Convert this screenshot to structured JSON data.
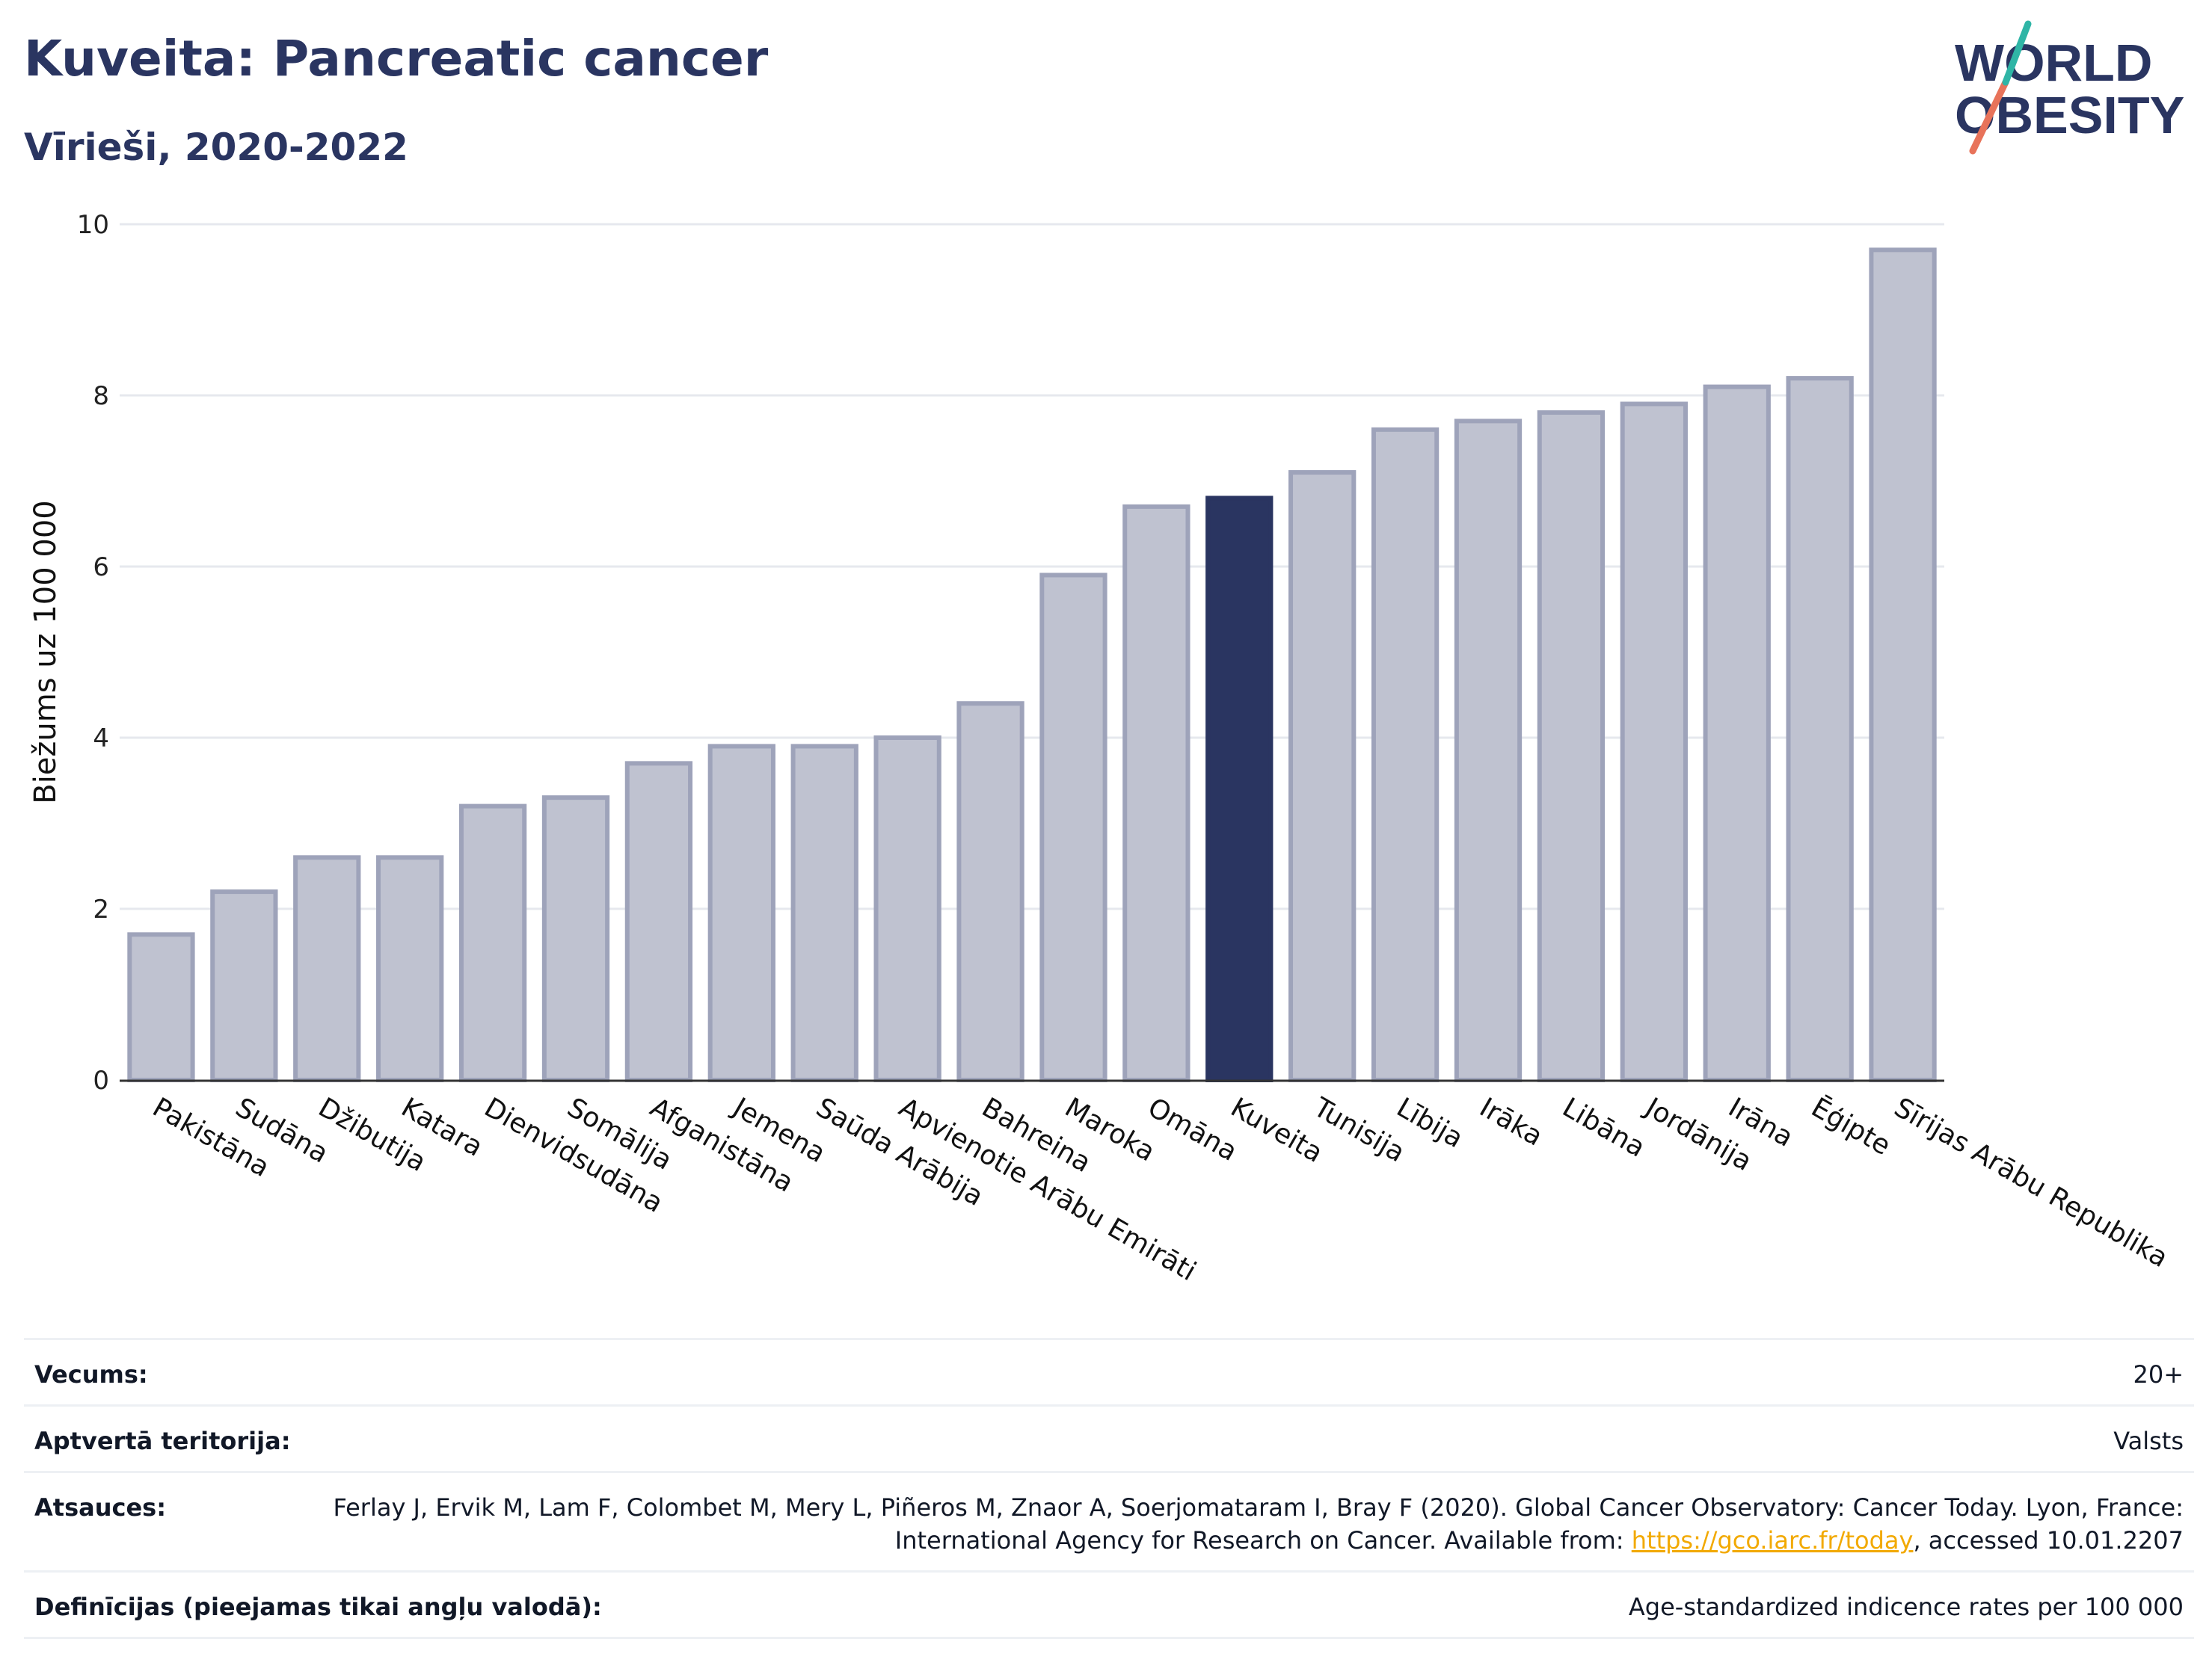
{
  "header": {
    "title": "Kuveita: Pancreatic cancer",
    "subtitle": "Vīrieši, 2020-2022"
  },
  "logo": {
    "line1": "WORLD",
    "line2": "OBESITY"
  },
  "chart_data": {
    "type": "bar",
    "title": "Kuveita: Pancreatic cancer",
    "subtitle": "Vīrieši, 2020-2022",
    "ylabel": "Biežums uz 100 000",
    "xlabel": "",
    "ylim": [
      0,
      10
    ],
    "yticks": [
      0,
      2,
      4,
      6,
      8,
      10
    ],
    "grid": true,
    "categories": [
      "Pakistāna",
      "Sudāna",
      "Džibutija",
      "Katara",
      "Dienvidsudāna",
      "Somālija",
      "Afganistāna",
      "Jemena",
      "Saūda Arābija",
      "Apvienotie Arābu Emirāti",
      "Bahreina",
      "Maroka",
      "Omāna",
      "Kuveita",
      "Tunisija",
      "Lībija",
      "Irāka",
      "Libāna",
      "Jordānija",
      "Irāna",
      "Ēģipte",
      "Sīrijas Arābu Republika"
    ],
    "values": [
      1.7,
      2.2,
      2.6,
      2.6,
      3.2,
      3.3,
      3.7,
      3.9,
      3.9,
      4.0,
      4.4,
      5.9,
      6.7,
      6.8,
      7.1,
      7.6,
      7.7,
      7.8,
      7.9,
      8.1,
      8.2,
      9.7
    ],
    "highlight": "Kuveita",
    "colors": {
      "bar": "#bfc2d0",
      "bar_border": "#9ea3ba",
      "highlight": "#2a3561",
      "grid": "#e6e8ee",
      "axis": "#333333"
    }
  },
  "meta": {
    "age_label": "Vecums:",
    "age_value": "20+",
    "coverage_label": "Aptvertā teritorija:",
    "coverage_value": "Valsts",
    "refs_label": "Atsauces:",
    "refs_text_1": "Ferlay J, Ervik M, Lam F, Colombet M, Mery L, Piñeros M, Znaor A, Soerjomataram I, Bray F (2020). Global Cancer Observatory: Cancer Today. Lyon, France: International Agency for Research on Cancer. Available from: ",
    "refs_link": "https://gco.iarc.fr/today",
    "refs_text_2": ", accessed 10.01.2207",
    "def_label": "Definīcijas (pieejamas tikai angļu valodā):",
    "def_value": "Age-standardized indicence rates per 100 000"
  }
}
